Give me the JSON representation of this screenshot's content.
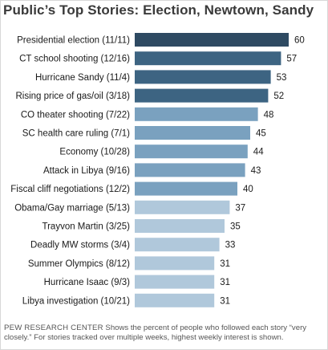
{
  "chart_data": {
    "type": "bar",
    "orientation": "horizontal",
    "title": "Public’s Top Stories: Election, Newtown, Sandy",
    "categories": [
      "Presidential election (11/11)",
      "CT school shooting (12/16)",
      "Hurricane Sandy (11/4)",
      "Rising price of gas/oil (3/18)",
      "CO theater shooting (7/22)",
      "SC health care ruling (7/1)",
      "Economy (10/28)",
      "Attack in Libya (9/16)",
      "Fiscal cliff negotiations (12/2)",
      "Obama/Gay marriage (5/13)",
      "Trayvon Martin (3/25)",
      "Deadly MW storms (3/4)",
      "Summer Olympics (8/12)",
      "Hurricane Isaac (9/3)",
      "Libya investigation (10/21)"
    ],
    "values": [
      60,
      57,
      53,
      52,
      48,
      45,
      44,
      43,
      40,
      37,
      35,
      33,
      31,
      31,
      31
    ],
    "bar_colors": [
      "#2e4a62",
      "#3d6482",
      "#3d6482",
      "#3d6482",
      "#7aa1bf",
      "#7aa1bf",
      "#7aa1bf",
      "#7aa1bf",
      "#7aa1bf",
      "#b0c8db",
      "#b0c8db",
      "#b0c8db",
      "#b0c8db",
      "#b0c8db",
      "#b0c8db"
    ],
    "xlim": [
      0,
      60
    ],
    "grid": false,
    "legend": "none",
    "xlabel": "",
    "ylabel": ""
  },
  "footnote": {
    "source": "PEW RESEARCH CENTER",
    "text": " Shows the percent of people who followed each story “very closely.” For stories tracked over multiple weeks, highest weekly interest is shown."
  },
  "colors": {
    "frame": "#d8d8d8",
    "text": "#1a1a1a",
    "title": "#3a3a3a"
  }
}
